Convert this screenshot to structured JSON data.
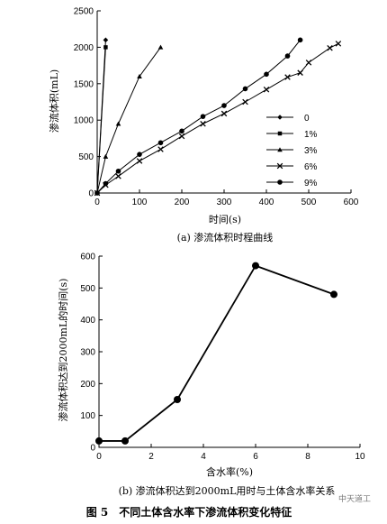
{
  "chart_data": [
    {
      "type": "line",
      "title": "",
      "caption": "(a) 渗流体积时程曲线",
      "xlabel": "时间(s)",
      "ylabel": "渗流体积(mL)",
      "xlim": [
        0,
        600
      ],
      "ylim": [
        0,
        2500
      ],
      "xticks": [
        "0",
        "100",
        "200",
        "300",
        "400",
        "500",
        "600"
      ],
      "yticks": [
        "0",
        "500",
        "1000",
        "1500",
        "2000",
        "2500"
      ],
      "grid": false,
      "legend_position": "bottom-right",
      "series": [
        {
          "name": "0",
          "marker": "diamond",
          "points": [
            [
              0,
              0
            ],
            [
              20,
              2100
            ]
          ]
        },
        {
          "name": "1%",
          "marker": "square",
          "points": [
            [
              0,
              0
            ],
            [
              20,
              2000
            ]
          ]
        },
        {
          "name": "3%",
          "marker": "triangle",
          "points": [
            [
              0,
              0
            ],
            [
              20,
              500
            ],
            [
              50,
              950
            ],
            [
              100,
              1600
            ],
            [
              150,
              2000
            ]
          ]
        },
        {
          "name": "6%",
          "marker": "x",
          "points": [
            [
              0,
              0
            ],
            [
              20,
              110
            ],
            [
              50,
              230
            ],
            [
              100,
              440
            ],
            [
              150,
              600
            ],
            [
              200,
              780
            ],
            [
              250,
              950
            ],
            [
              300,
              1090
            ],
            [
              350,
              1250
            ],
            [
              400,
              1420
            ],
            [
              450,
              1590
            ],
            [
              480,
              1650
            ],
            [
              500,
              1790
            ],
            [
              550,
              1990
            ],
            [
              570,
              2050
            ]
          ]
        },
        {
          "name": "9%",
          "marker": "circle",
          "points": [
            [
              0,
              0
            ],
            [
              20,
              130
            ],
            [
              50,
              300
            ],
            [
              100,
              530
            ],
            [
              150,
              690
            ],
            [
              200,
              850
            ],
            [
              250,
              1050
            ],
            [
              300,
              1200
            ],
            [
              350,
              1430
            ],
            [
              400,
              1630
            ],
            [
              450,
              1880
            ],
            [
              480,
              2100
            ]
          ]
        }
      ]
    },
    {
      "type": "line",
      "title": "",
      "caption": "(b) 渗流体积达到2000mL用时与土体含水率关系",
      "xlabel": "含水率(%)",
      "ylabel": "渗流体积达到2000mL的时间(s)",
      "xlim": [
        0,
        10
      ],
      "ylim": [
        0,
        600
      ],
      "xticks": [
        "0",
        "2",
        "4",
        "6",
        "8",
        "10"
      ],
      "yticks": [
        "0",
        "100",
        "200",
        "300",
        "400",
        "500",
        "600"
      ],
      "grid": false,
      "series": [
        {
          "name": "",
          "marker": "circle",
          "points": [
            [
              0,
              20
            ],
            [
              1,
              20
            ],
            [
              3,
              150
            ],
            [
              6,
              570
            ],
            [
              9,
              480
            ]
          ]
        }
      ]
    }
  ],
  "figure_title": "图 5　不同土体含水率下渗流体积变化特征",
  "watermark": "中天道工"
}
